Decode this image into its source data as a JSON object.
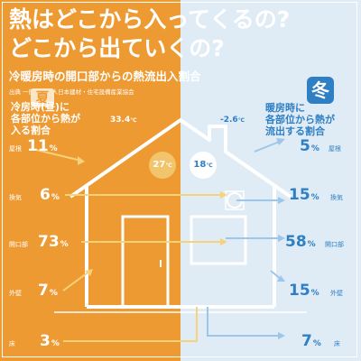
{
  "header": {
    "title_line1": "熱はどこから入ってくるの?",
    "title_line2": "どこから出ていくの?",
    "subtitle": "冷暖房時の開口部からの熱流出入割合",
    "source": "出典 一般社団法人日本建材・住宅設備産業協会"
  },
  "summer": {
    "kanji": "夏",
    "title_line1": "冷房時(昼)に",
    "title_line2": "各部位から熱が",
    "title_line3": "入る割合",
    "outdoor_temp": "33.4",
    "indoor_temp": "27",
    "unit": "℃",
    "items": [
      {
        "label": "屋根",
        "value": "11",
        "unit": "%"
      },
      {
        "label": "換気",
        "value": "6",
        "unit": "%"
      },
      {
        "label": "開口部",
        "value": "73",
        "unit": "%"
      },
      {
        "label": "外壁",
        "value": "7",
        "unit": "%"
      },
      {
        "label": "床",
        "value": "3",
        "unit": "%"
      }
    ]
  },
  "winter": {
    "kanji": "冬",
    "title_line1": "暖房時に",
    "title_line2": "各部位から熱が",
    "title_line3": "流出する割合",
    "outdoor_temp": "-2.6",
    "indoor_temp": "18",
    "unit": "℃",
    "items": [
      {
        "label": "屋根",
        "value": "5",
        "unit": "%"
      },
      {
        "label": "換気",
        "value": "15",
        "unit": "%"
      },
      {
        "label": "開口部",
        "value": "58",
        "unit": "%"
      },
      {
        "label": "外壁",
        "value": "15",
        "unit": "%"
      },
      {
        "label": "床",
        "value": "7",
        "unit": "%"
      }
    ]
  },
  "colors": {
    "summer": "#ee9a33",
    "winter": "#2e7fc4",
    "winter_bg": "#e0ecf5",
    "arrow_summer": "#f6d27a",
    "arrow_winter": "#9cc6ea",
    "house_line": "#ffffff"
  }
}
